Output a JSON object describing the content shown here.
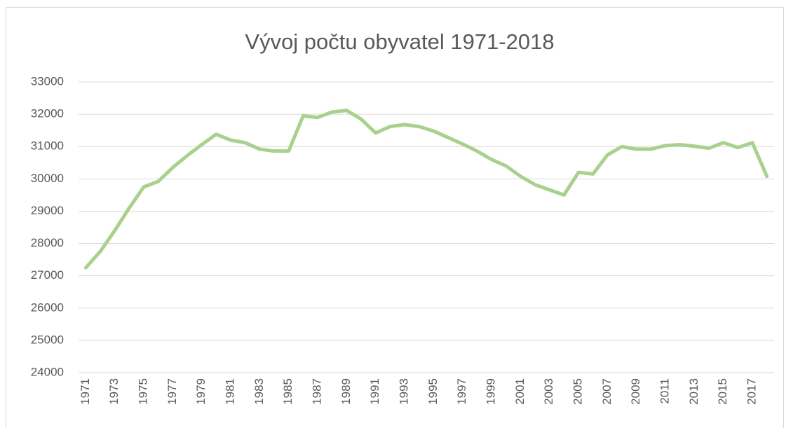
{
  "chart_data": {
    "type": "line",
    "title": "Vývoj počtu obyvatel 1971-2018",
    "categories": [
      "1971",
      null,
      "1973",
      null,
      "1975",
      null,
      "1977",
      null,
      "1979",
      null,
      "1981",
      null,
      "1983",
      null,
      "1985",
      null,
      "1987",
      null,
      "1989",
      null,
      "1991",
      null,
      "1993",
      null,
      "1995",
      null,
      "1997",
      null,
      "1999",
      null,
      "2001",
      null,
      "2003",
      null,
      "2005",
      null,
      "2007",
      null,
      "2009",
      null,
      "2011",
      null,
      "2013",
      null,
      "2015",
      null,
      "2017",
      null
    ],
    "values": [
      27250,
      27750,
      28400,
      29100,
      29750,
      29920,
      30350,
      30720,
      31060,
      31380,
      31200,
      31120,
      30920,
      30860,
      30860,
      31950,
      31900,
      32070,
      32120,
      31850,
      31420,
      31620,
      31680,
      31620,
      31480,
      31280,
      31080,
      30860,
      30600,
      30400,
      30080,
      29820,
      29660,
      29500,
      30200,
      30150,
      30740,
      31000,
      30920,
      30920,
      31030,
      31060,
      31010,
      30950,
      31120,
      30970,
      31120,
      30080
    ],
    "color": "#a9d18e",
    "ylim": [
      24000,
      33000
    ],
    "yticks": [
      24000,
      25000,
      26000,
      27000,
      28000,
      29000,
      30000,
      31000,
      32000,
      33000
    ],
    "grid": true
  }
}
